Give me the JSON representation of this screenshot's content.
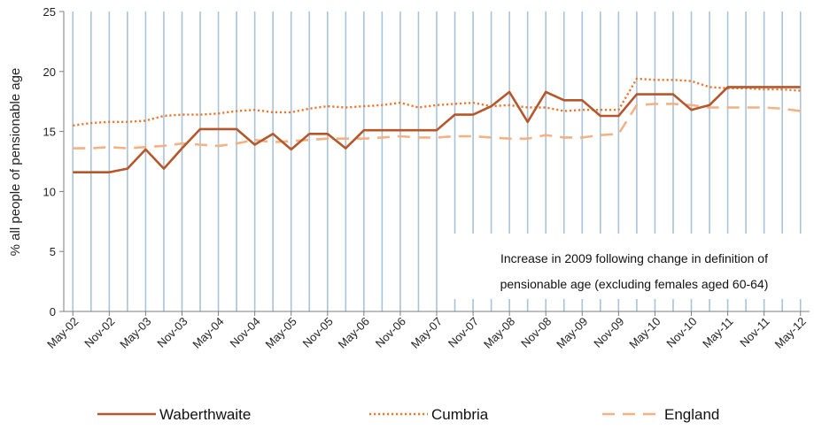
{
  "chart_data": {
    "type": "line",
    "ylabel": "% all people of pensionable age",
    "ylim": [
      0,
      25
    ],
    "yticks": [
      0,
      5,
      10,
      15,
      20,
      25
    ],
    "x_tick_labels": [
      "May-02",
      "Nov-02",
      "May-03",
      "Nov-03",
      "May-04",
      "Nov-04",
      "May-05",
      "Nov-05",
      "May-06",
      "Nov-06",
      "May-07",
      "Nov-07",
      "May-08",
      "Nov-08",
      "May-09",
      "Nov-09",
      "May-10",
      "Nov-10",
      "May-11",
      "Nov-11",
      "May-12"
    ],
    "x": [
      "May-02",
      "Aug-02",
      "Nov-02",
      "Feb-03",
      "May-03",
      "Aug-03",
      "Nov-03",
      "Feb-04",
      "May-04",
      "Aug-04",
      "Nov-04",
      "Feb-05",
      "May-05",
      "Aug-05",
      "Nov-05",
      "Feb-06",
      "May-06",
      "Aug-06",
      "Nov-06",
      "Feb-07",
      "May-07",
      "Aug-07",
      "Nov-07",
      "Feb-08",
      "May-08",
      "Aug-08",
      "Nov-08",
      "Feb-09",
      "May-09",
      "Aug-09",
      "Nov-09",
      "Feb-10",
      "May-10",
      "Aug-10",
      "Nov-10",
      "Feb-11",
      "May-11",
      "Aug-11",
      "Nov-11",
      "Feb-12",
      "May-12"
    ],
    "gridlines": "vertical",
    "series": [
      {
        "name": "Waberthwaite",
        "style": "solid",
        "color": "#b5572a",
        "width": 2.6,
        "values": [
          11.6,
          11.6,
          11.6,
          11.9,
          13.5,
          11.9,
          13.6,
          15.2,
          15.2,
          15.2,
          13.9,
          14.8,
          13.5,
          14.8,
          14.8,
          13.6,
          15.1,
          15.1,
          15.1,
          15.1,
          15.1,
          16.4,
          16.4,
          17.1,
          18.3,
          15.8,
          18.3,
          17.6,
          17.6,
          16.3,
          16.3,
          18.1,
          18.1,
          18.1,
          16.8,
          17.2,
          18.7,
          18.7,
          18.7,
          18.7,
          18.7
        ]
      },
      {
        "name": "Cumbria",
        "style": "dotted",
        "color": "#e8782f",
        "width": 2.4,
        "values": [
          15.5,
          15.7,
          15.8,
          15.8,
          15.9,
          16.3,
          16.4,
          16.4,
          16.5,
          16.7,
          16.8,
          16.6,
          16.6,
          16.9,
          17.1,
          17.0,
          17.1,
          17.2,
          17.4,
          17.0,
          17.2,
          17.3,
          17.4,
          17.1,
          17.2,
          17.0,
          17.0,
          16.7,
          16.8,
          16.8,
          16.8,
          19.4,
          19.3,
          19.3,
          19.2,
          18.7,
          18.6,
          18.6,
          18.5,
          18.5,
          18.4
        ]
      },
      {
        "name": "England",
        "style": "dashed",
        "color": "#f4b183",
        "width": 2.6,
        "values": [
          13.6,
          13.6,
          13.7,
          13.6,
          13.7,
          13.8,
          14.0,
          13.9,
          13.8,
          14.0,
          14.3,
          14.1,
          14.2,
          14.3,
          14.4,
          14.4,
          14.4,
          14.5,
          14.6,
          14.5,
          14.5,
          14.6,
          14.6,
          14.5,
          14.4,
          14.4,
          14.7,
          14.5,
          14.5,
          14.7,
          14.8,
          17.2,
          17.3,
          17.3,
          17.2,
          17.0,
          17.0,
          17.0,
          17.0,
          16.9,
          16.7
        ]
      }
    ],
    "annotation": [
      "Increase in 2009 following change in definition of",
      "pensionable age (excluding females aged 60-64)"
    ],
    "legend_position": "bottom"
  }
}
